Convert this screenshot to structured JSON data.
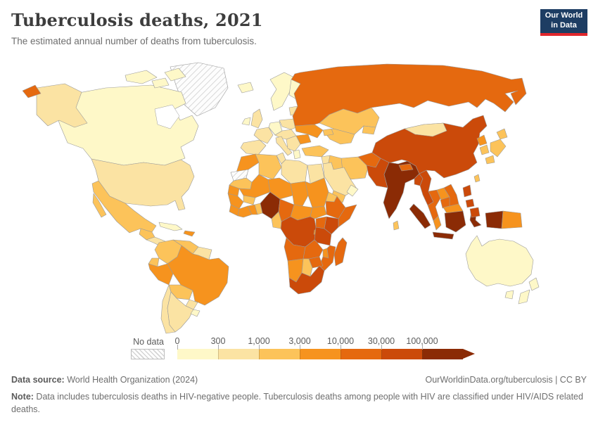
{
  "header": {
    "title": "Tuberculosis deaths, 2021",
    "subtitle": "The estimated annual number of deaths from tuberculosis."
  },
  "logo": {
    "line1": "Our World",
    "line2": "in Data",
    "bg_color": "#1d3d63",
    "accent_color": "#e0262c"
  },
  "legend": {
    "no_data_label": "No data",
    "tick_labels": [
      "0",
      "300",
      "1,000",
      "3,000",
      "10,000",
      "30,000",
      "100,000"
    ],
    "bin_colors": [
      "#FEF8C8",
      "#FBE3A3",
      "#FCC35A",
      "#F6931E",
      "#E5690F",
      "#CB4A0A",
      "#8B2B05"
    ]
  },
  "footer": {
    "source_label": "Data source:",
    "source_text": " World Health Organization (2024)",
    "rights_text": "OurWorldinData.org/tuberculosis | CC BY",
    "note_label": "Note:",
    "note_text": " Data includes tuberculosis deaths in HIV-negative people. Tuberculosis deaths among people with HIV are classified under HIV/AIDS related deaths."
  },
  "chart_data": {
    "type": "choropleth_map",
    "title": "Tuberculosis deaths, 2021",
    "year": 2021,
    "unit": "deaths",
    "legend_position": "bottom",
    "scale": {
      "type": "log-binned",
      "bin_edges": [
        0,
        300,
        1000,
        3000,
        10000,
        30000,
        100000
      ],
      "open_ended_top": true
    },
    "bin_labels": [
      "0-300",
      "300-1,000",
      "1,000-3,000",
      "3,000-10,000",
      "10,000-30,000",
      "30,000-100,000",
      "100,000+"
    ],
    "no_data_label": "No data",
    "countries": [
      {
        "id": "greenland",
        "name": "Greenland",
        "bin": -1
      },
      {
        "id": "canada",
        "name": "Canada",
        "bin": 0
      },
      {
        "id": "usa",
        "name": "United States",
        "bin": 1
      },
      {
        "id": "mexico",
        "name": "Mexico",
        "bin": 2
      },
      {
        "id": "guatemala",
        "name": "Guatemala",
        "bin": 2
      },
      {
        "id": "central-america",
        "name": "Central America",
        "bin": 1
      },
      {
        "id": "cuba",
        "name": "Cuba",
        "bin": 0
      },
      {
        "id": "hispaniola",
        "name": "Haiti",
        "bin": 3
      },
      {
        "id": "colombia",
        "name": "Colombia",
        "bin": 2
      },
      {
        "id": "venezuela",
        "name": "Venezuela",
        "bin": 2
      },
      {
        "id": "guianas",
        "name": "Guyana",
        "bin": 1
      },
      {
        "id": "ecuador",
        "name": "Ecuador",
        "bin": 2
      },
      {
        "id": "peru",
        "name": "Peru",
        "bin": 3
      },
      {
        "id": "brazil",
        "name": "Brazil",
        "bin": 3
      },
      {
        "id": "bolivia",
        "name": "Bolivia",
        "bin": 2
      },
      {
        "id": "paraguay",
        "name": "Paraguay",
        "bin": 1
      },
      {
        "id": "chile",
        "name": "Chile",
        "bin": 1
      },
      {
        "id": "argentina",
        "name": "Argentina",
        "bin": 1
      },
      {
        "id": "uruguay",
        "name": "Uruguay",
        "bin": 0
      },
      {
        "id": "iceland",
        "name": "Iceland",
        "bin": 0
      },
      {
        "id": "uk",
        "name": "United Kingdom",
        "bin": 1
      },
      {
        "id": "ireland",
        "name": "Ireland",
        "bin": 0
      },
      {
        "id": "scandinavia",
        "name": "Norway and Sweden",
        "bin": 0
      },
      {
        "id": "finland",
        "name": "Finland",
        "bin": 0
      },
      {
        "id": "iberia",
        "name": "Spain and Portugal",
        "bin": 1
      },
      {
        "id": "france",
        "name": "France",
        "bin": 1
      },
      {
        "id": "germany",
        "name": "Germany",
        "bin": 0
      },
      {
        "id": "poland",
        "name": "Poland",
        "bin": 1
      },
      {
        "id": "central-europe",
        "name": "Central Europe",
        "bin": 1
      },
      {
        "id": "italy",
        "name": "Italy",
        "bin": 1
      },
      {
        "id": "balkans",
        "name": "Balkans",
        "bin": 1
      },
      {
        "id": "greece",
        "name": "Greece",
        "bin": 0
      },
      {
        "id": "romania",
        "name": "Romania",
        "bin": 3
      },
      {
        "id": "ukraine",
        "name": "Ukraine",
        "bin": 3
      },
      {
        "id": "belarus",
        "name": "Belarus",
        "bin": 1
      },
      {
        "id": "baltics",
        "name": "Baltic states",
        "bin": 1
      },
      {
        "id": "russia",
        "name": "Russia",
        "bin": 4
      },
      {
        "id": "kazakhstan",
        "name": "Kazakhstan",
        "bin": 2
      },
      {
        "id": "uzbek-turkmen",
        "name": "Uzbekistan and Turkmenistan",
        "bin": 2
      },
      {
        "id": "kyrgyz-tajik",
        "name": "Kyrgyzstan and Tajikistan",
        "bin": 2
      },
      {
        "id": "caucasus",
        "name": "Caucasus",
        "bin": 2
      },
      {
        "id": "turkey",
        "name": "Turkey",
        "bin": 2
      },
      {
        "id": "syria",
        "name": "Syria",
        "bin": 1
      },
      {
        "id": "iraq",
        "name": "Iraq",
        "bin": 2
      },
      {
        "id": "iran",
        "name": "Iran",
        "bin": 2
      },
      {
        "id": "afghanistan",
        "name": "Afghanistan",
        "bin": 4
      },
      {
        "id": "pakistan",
        "name": "Pakistan",
        "bin": 5
      },
      {
        "id": "saudi-arabia",
        "name": "Saudi Arabia",
        "bin": 1
      },
      {
        "id": "yemen",
        "name": "Yemen",
        "bin": 2
      },
      {
        "id": "oman",
        "name": "Oman",
        "bin": 0
      },
      {
        "id": "egypt",
        "name": "Egypt",
        "bin": 1
      },
      {
        "id": "morocco",
        "name": "Morocco",
        "bin": 3
      },
      {
        "id": "western-sahara",
        "name": "Western Sahara",
        "bin": -1
      },
      {
        "id": "mauritania",
        "name": "Mauritania",
        "bin": 2
      },
      {
        "id": "algeria",
        "name": "Algeria",
        "bin": 2
      },
      {
        "id": "tunisia",
        "name": "Tunisia",
        "bin": 1
      },
      {
        "id": "libya",
        "name": "Libya",
        "bin": 1
      },
      {
        "id": "mali",
        "name": "Mali",
        "bin": 3
      },
      {
        "id": "niger",
        "name": "Niger",
        "bin": 3
      },
      {
        "id": "chad",
        "name": "Chad",
        "bin": 3
      },
      {
        "id": "sudan",
        "name": "Sudan",
        "bin": 3
      },
      {
        "id": "eritrea",
        "name": "Eritrea",
        "bin": 2
      },
      {
        "id": "senegal",
        "name": "Senegal",
        "bin": 3
      },
      {
        "id": "guinea",
        "name": "Guinea",
        "bin": 3
      },
      {
        "id": "sierra-leone-liberia",
        "name": "Sierra Leone and Liberia",
        "bin": 3
      },
      {
        "id": "ivory-coast",
        "name": "Cote d'Ivoire",
        "bin": 3
      },
      {
        "id": "ghana",
        "name": "Ghana",
        "bin": 3
      },
      {
        "id": "burkina-faso",
        "name": "Burkina Faso",
        "bin": 2
      },
      {
        "id": "togo-benin",
        "name": "Togo and Benin",
        "bin": 2
      },
      {
        "id": "nigeria",
        "name": "Nigeria",
        "bin": 6
      },
      {
        "id": "cameroon",
        "name": "Cameroon",
        "bin": 4
      },
      {
        "id": "central-african-republic",
        "name": "Central African Republic",
        "bin": 3
      },
      {
        "id": "south-sudan",
        "name": "South Sudan",
        "bin": 3
      },
      {
        "id": "ethiopia",
        "name": "Ethiopia",
        "bin": 4
      },
      {
        "id": "somalia",
        "name": "Somalia",
        "bin": 4
      },
      {
        "id": "kenya",
        "name": "Kenya",
        "bin": 5
      },
      {
        "id": "uganda",
        "name": "Uganda",
        "bin": 4
      },
      {
        "id": "drc",
        "name": "Democratic Republic of Congo",
        "bin": 5
      },
      {
        "id": "congo-gabon",
        "name": "Congo and Gabon",
        "bin": 2
      },
      {
        "id": "rwanda-burundi",
        "name": "Rwanda and Burundi",
        "bin": 3
      },
      {
        "id": "tanzania",
        "name": "Tanzania",
        "bin": 5
      },
      {
        "id": "angola",
        "name": "Angola",
        "bin": 4
      },
      {
        "id": "zambia",
        "name": "Zambia",
        "bin": 4
      },
      {
        "id": "malawi",
        "name": "Malawi",
        "bin": 3
      },
      {
        "id": "mozambique",
        "name": "Mozambique",
        "bin": 4
      },
      {
        "id": "zimbabwe",
        "name": "Zimbabwe",
        "bin": 4
      },
      {
        "id": "namibia",
        "name": "Namibia",
        "bin": 3
      },
      {
        "id": "botswana",
        "name": "Botswana",
        "bin": 2
      },
      {
        "id": "south-africa",
        "name": "South Africa",
        "bin": 5
      },
      {
        "id": "madagascar",
        "name": "Madagascar",
        "bin": 4
      },
      {
        "id": "india",
        "name": "India",
        "bin": 6
      },
      {
        "id": "nepal",
        "name": "Nepal",
        "bin": 4
      },
      {
        "id": "bangladesh",
        "name": "Bangladesh",
        "bin": 5
      },
      {
        "id": "sri-lanka",
        "name": "Sri Lanka",
        "bin": 2
      },
      {
        "id": "myanmar",
        "name": "Myanmar",
        "bin": 5
      },
      {
        "id": "thailand",
        "name": "Thailand",
        "bin": 4
      },
      {
        "id": "laos",
        "name": "Laos",
        "bin": 3
      },
      {
        "id": "cambodia",
        "name": "Cambodia",
        "bin": 4
      },
      {
        "id": "vietnam",
        "name": "Vietnam",
        "bin": 4
      },
      {
        "id": "malaysia-peninsula",
        "name": "Malaysia (peninsula)",
        "bin": 3
      },
      {
        "id": "malaysia-borneo",
        "name": "Malaysia (Borneo)",
        "bin": 3
      },
      {
        "id": "indonesia",
        "name": "Indonesia",
        "bin": 6
      },
      {
        "id": "papua-new-guinea",
        "name": "Papua New Guinea",
        "bin": 3
      },
      {
        "id": "philippines",
        "name": "Philippines",
        "bin": 5
      },
      {
        "id": "china",
        "name": "China",
        "bin": 5
      },
      {
        "id": "mongolia",
        "name": "Mongolia",
        "bin": 1
      },
      {
        "id": "north-korea",
        "name": "North Korea",
        "bin": 3
      },
      {
        "id": "south-korea",
        "name": "South Korea",
        "bin": 2
      },
      {
        "id": "japan",
        "name": "Japan",
        "bin": 2
      },
      {
        "id": "taiwan",
        "name": "Taiwan",
        "bin": 2
      },
      {
        "id": "australia",
        "name": "Australia",
        "bin": 0
      },
      {
        "id": "new-zealand",
        "name": "New Zealand",
        "bin": 0
      }
    ]
  }
}
